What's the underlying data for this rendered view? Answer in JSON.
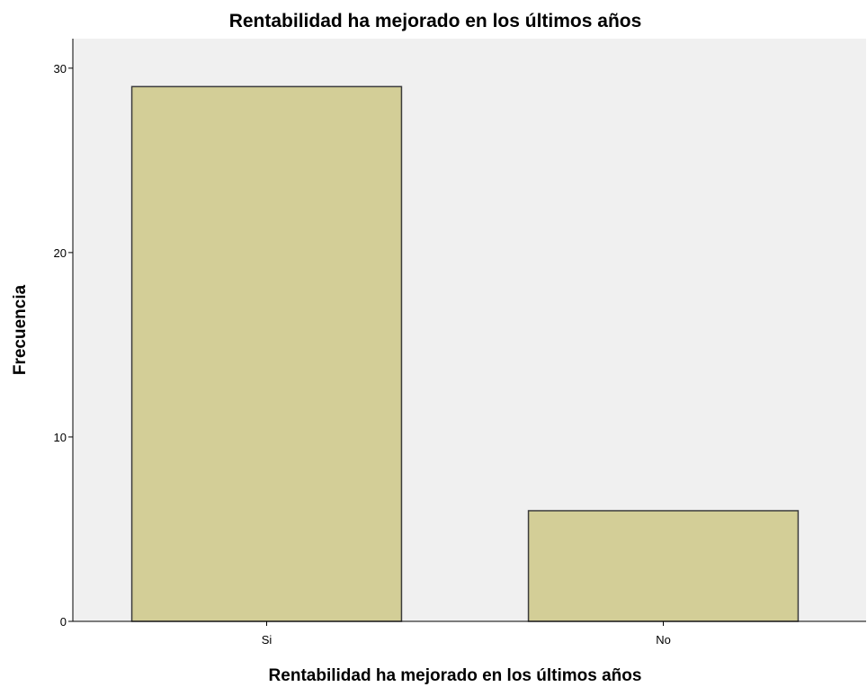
{
  "chart_data": {
    "type": "bar",
    "title": "Rentabilidad ha mejorado en los últimos años",
    "xlabel": "Rentabilidad ha mejorado en los últimos años",
    "ylabel": "Frecuencia",
    "categories": [
      "Si",
      "No"
    ],
    "values": [
      29,
      6
    ],
    "ylim": [
      0,
      31.6
    ],
    "yticks": [
      0,
      10,
      20,
      30
    ],
    "grid": false,
    "legend": "none",
    "colors": {
      "bar_fill": "#d3ce97",
      "bar_stroke": "#3c3c3c",
      "plot_background": "#f0f0f0",
      "axis": "#000000"
    }
  }
}
